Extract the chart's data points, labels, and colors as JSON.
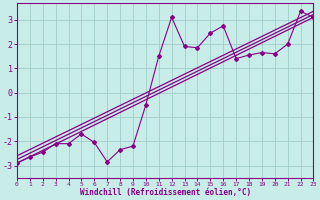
{
  "xlabel": "Windchill (Refroidissement éolien,°C)",
  "bg_color": "#c8ece8",
  "grid_color": "#a0ccc8",
  "line_color": "#880088",
  "xlim": [
    0,
    23
  ],
  "ylim": [
    -3.5,
    3.7
  ],
  "yticks": [
    -3,
    -2,
    -1,
    0,
    1,
    2,
    3
  ],
  "xticks": [
    0,
    1,
    2,
    3,
    4,
    5,
    6,
    7,
    8,
    9,
    10,
    11,
    12,
    13,
    14,
    15,
    16,
    17,
    18,
    19,
    20,
    21,
    22,
    23
  ],
  "scatter_x": [
    0,
    1,
    2,
    3,
    4,
    5,
    6,
    7,
    8,
    9,
    10,
    11,
    12,
    13,
    14,
    15,
    16,
    17,
    18,
    19,
    20,
    21,
    22,
    23
  ],
  "scatter_y": [
    -2.9,
    -2.65,
    -2.45,
    -2.1,
    -2.1,
    -1.7,
    -2.05,
    -2.85,
    -2.35,
    -2.2,
    -0.5,
    1.5,
    3.1,
    1.9,
    1.85,
    2.45,
    2.75,
    1.4,
    1.55,
    1.65,
    1.6,
    2.0,
    3.35,
    3.1
  ],
  "reg_lines": [
    {
      "x1": 0,
      "y1": -2.9,
      "x2": 23,
      "y2": 3.1
    },
    {
      "x1": 0,
      "y1": -2.6,
      "x2": 23,
      "y2": 3.35
    },
    {
      "x1": 0,
      "y1": -2.75,
      "x2": 23,
      "y2": 3.22
    }
  ]
}
